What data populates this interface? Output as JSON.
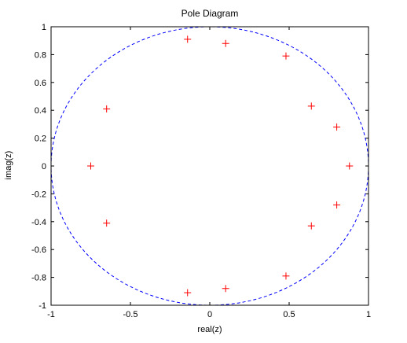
{
  "chart_data": {
    "type": "scatter",
    "title": "Pole Diagram",
    "xlabel": "real(z)",
    "ylabel": "imag(z)",
    "xlim": [
      -1,
      1
    ],
    "ylim": [
      -1,
      1
    ],
    "xticks": [
      -1,
      -0.5,
      0,
      0.5,
      1
    ],
    "xtick_labels": [
      "-1",
      "-0.5",
      "0",
      "0.5",
      "1"
    ],
    "yticks": [
      -1,
      -0.8,
      -0.6,
      -0.4,
      -0.2,
      0,
      0.2,
      0.4,
      0.6,
      0.8,
      1
    ],
    "ytick_labels": [
      "-1",
      "-0.8",
      "-0.6",
      "-0.4",
      "-0.2",
      "0",
      "0.2",
      "0.4",
      "0.6",
      "0.8",
      "1"
    ],
    "grid": false,
    "marker": "plus",
    "marker_color": "#ff0000",
    "unit_circle": {
      "center": [
        0,
        0
      ],
      "radius": 1,
      "color": "#0000ff",
      "style": "dashed"
    },
    "points": [
      {
        "x": 0.88,
        "y": 0.0
      },
      {
        "x": 0.8,
        "y": 0.28
      },
      {
        "x": 0.8,
        "y": -0.28
      },
      {
        "x": 0.64,
        "y": 0.43
      },
      {
        "x": 0.64,
        "y": -0.43
      },
      {
        "x": 0.48,
        "y": 0.79
      },
      {
        "x": 0.48,
        "y": -0.79
      },
      {
        "x": 0.1,
        "y": 0.88
      },
      {
        "x": 0.1,
        "y": -0.88
      },
      {
        "x": -0.14,
        "y": 0.91
      },
      {
        "x": -0.14,
        "y": -0.91
      },
      {
        "x": -0.65,
        "y": 0.41
      },
      {
        "x": -0.65,
        "y": -0.41
      },
      {
        "x": -0.75,
        "y": 0.0
      }
    ]
  }
}
